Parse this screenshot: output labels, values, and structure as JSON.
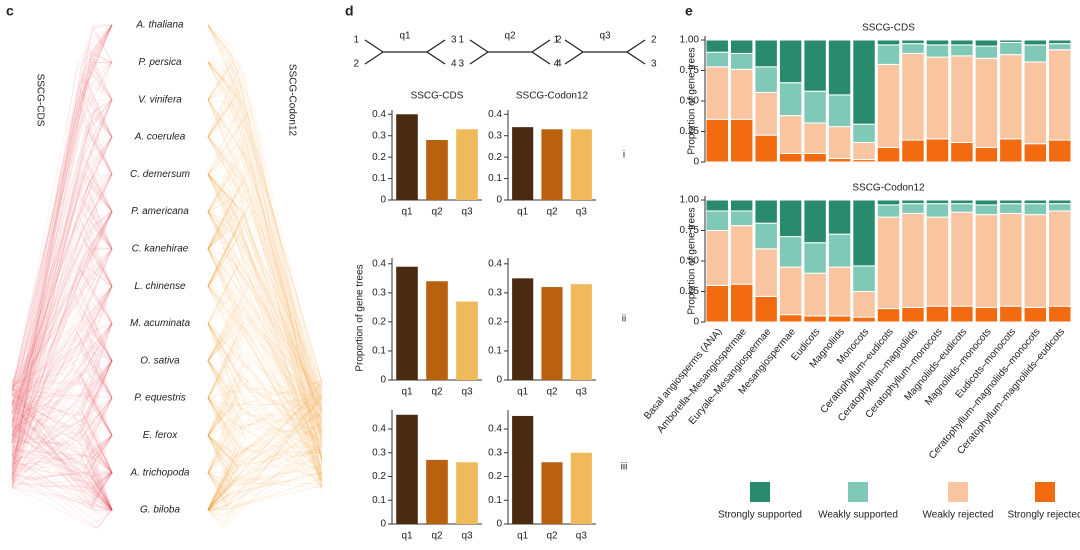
{
  "panel_labels": [
    "c",
    "d",
    "e"
  ],
  "cloudtree": {
    "left_label": "SSCG-CDS",
    "right_label": "SSCG-Codon12",
    "taxa": [
      "A. thaliana",
      "P. persica",
      "V. vinifera",
      "A. coerulea",
      "C. demersum",
      "P. americana",
      "C. kanehirae",
      "L. chinense",
      "M. acuminata",
      "O. sativa",
      "P. equestris",
      "E. ferox",
      "A. trichopoda",
      "G. biloba"
    ]
  },
  "topologies": [
    {
      "name": "q1",
      "leaves": [
        "1",
        "2",
        "3",
        "4"
      ]
    },
    {
      "name": "q2",
      "leaves": [
        "1",
        "3",
        "2",
        "4"
      ]
    },
    {
      "name": "q3",
      "leaves": [
        "1",
        "4",
        "2",
        "3"
      ]
    }
  ],
  "d_ylabel": "Proportion of gene trees",
  "chart_data": [
    {
      "type": "bar",
      "title": "SSCG-CDS",
      "categories": [
        "q1",
        "q2",
        "q3"
      ],
      "values": [
        0.4,
        0.28,
        0.33
      ],
      "colors": [
        "#4a2a10",
        "#b9610f",
        "#f0b95a"
      ],
      "ylim": [
        0,
        0.42
      ],
      "yticks": [
        0,
        0.1,
        0.2,
        0.3,
        0.4
      ]
    },
    {
      "type": "bar",
      "title": "SSCG-Codon12",
      "row_label": "i",
      "categories": [
        "q1",
        "q2",
        "q3"
      ],
      "values": [
        0.34,
        0.33,
        0.33
      ],
      "colors": [
        "#4a2a10",
        "#b9610f",
        "#f0b95a"
      ],
      "ylim": [
        0,
        0.42
      ],
      "yticks": [
        0,
        0.1,
        0.2,
        0.3,
        0.4
      ]
    },
    {
      "type": "bar",
      "categories": [
        "q1",
        "q2",
        "q3"
      ],
      "values": [
        0.39,
        0.34,
        0.27
      ],
      "colors": [
        "#4a2a10",
        "#b9610f",
        "#f0b95a"
      ],
      "ylim": [
        0,
        0.42
      ],
      "yticks": [
        0,
        0.1,
        0.2,
        0.3,
        0.4
      ]
    },
    {
      "type": "bar",
      "row_label": "ii",
      "categories": [
        "q1",
        "q2",
        "q3"
      ],
      "values": [
        0.35,
        0.32,
        0.33
      ],
      "colors": [
        "#4a2a10",
        "#b9610f",
        "#f0b95a"
      ],
      "ylim": [
        0,
        0.42
      ],
      "yticks": [
        0,
        0.1,
        0.2,
        0.3,
        0.4
      ]
    },
    {
      "type": "bar",
      "categories": [
        "q1",
        "q2",
        "q3"
      ],
      "values": [
        0.46,
        0.27,
        0.26
      ],
      "colors": [
        "#4a2a10",
        "#b9610f",
        "#f0b95a"
      ],
      "ylim": [
        0,
        0.48
      ],
      "yticks": [
        0,
        0.1,
        0.2,
        0.3,
        0.4
      ]
    },
    {
      "type": "bar",
      "row_label": "iii",
      "categories": [
        "q1",
        "q2",
        "q3"
      ],
      "values": [
        0.455,
        0.26,
        0.3
      ],
      "colors": [
        "#4a2a10",
        "#b9610f",
        "#f0b95a"
      ],
      "ylim": [
        0,
        0.48
      ],
      "yticks": [
        0,
        0.1,
        0.2,
        0.3,
        0.4
      ]
    },
    {
      "type": "stacked_bar",
      "title": "SSCG-CDS",
      "ylabel": "Proportion of gene trees",
      "ylim": [
        0,
        1
      ],
      "yticks": [
        0,
        0.25,
        {
          "value": 0.5,
          "label": "0.50"
        },
        0.75,
        {
          "value": 1,
          "label": "1.00"
        }
      ],
      "series": [
        {
          "color": "#f26b10",
          "values": [
            0.35,
            0.35,
            0.22,
            0.07,
            0.07,
            0.03,
            0.02,
            0.12,
            0.18,
            0.19,
            0.16,
            0.12,
            0.19,
            0.15,
            0.18
          ]
        },
        {
          "color": "#f9c4a0",
          "values": [
            0.43,
            0.41,
            0.35,
            0.31,
            0.25,
            0.26,
            0.14,
            0.68,
            0.71,
            0.67,
            0.71,
            0.73,
            0.69,
            0.67,
            0.74
          ]
        },
        {
          "color": "#80c9b8",
          "values": [
            0.12,
            0.13,
            0.21,
            0.27,
            0.26,
            0.26,
            0.15,
            0.16,
            0.08,
            0.1,
            0.09,
            0.1,
            0.1,
            0.14,
            0.05
          ]
        },
        {
          "color": "#2a8a6e",
          "values": [
            0.1,
            0.11,
            0.22,
            0.35,
            0.42,
            0.45,
            0.69,
            0.04,
            0.03,
            0.04,
            0.04,
            0.05,
            0.02,
            0.04,
            0.03
          ]
        }
      ]
    },
    {
      "type": "stacked_bar",
      "title": "SSCG-Codon12",
      "ylabel": "Proportion of gene trees",
      "ylim": [
        0,
        1
      ],
      "yticks": [
        0,
        0.25,
        {
          "value": 0.5,
          "label": "0.50"
        },
        0.75,
        {
          "value": 1,
          "label": "1.00"
        }
      ],
      "categories": [
        "Basal angiosperms (ANA)",
        "Amborella–Mesangiospermae",
        "Euryale–Mesangiospermae",
        "Mesangiospermae",
        "Eudicots",
        "Magnoliids",
        "Monocots",
        "Ceratophyllum–eudicots",
        "Ceratophyllum–magnoliids",
        "Ceratophyllum–monocots",
        "Magnoliids–eudicots",
        "Magnoliids–monocots",
        "Eudicots–monocots",
        "Ceratophyllum–magnoliids–monocots",
        "Ceratophyllum–magnoliids–eudicots"
      ],
      "legend": "bottom",
      "series": [
        {
          "name": "Strongly rejected",
          "color": "#f26b10",
          "values": [
            0.3,
            0.31,
            0.21,
            0.06,
            0.05,
            0.05,
            0.04,
            0.11,
            0.12,
            0.13,
            0.13,
            0.12,
            0.13,
            0.12,
            0.13
          ]
        },
        {
          "name": "Weakly rejected",
          "color": "#f9c4a0",
          "values": [
            0.45,
            0.48,
            0.39,
            0.39,
            0.35,
            0.4,
            0.21,
            0.75,
            0.77,
            0.73,
            0.77,
            0.76,
            0.76,
            0.76,
            0.78
          ]
        },
        {
          "name": "Weakly supported",
          "color": "#80c9b8",
          "values": [
            0.16,
            0.12,
            0.21,
            0.25,
            0.25,
            0.27,
            0.21,
            0.1,
            0.08,
            0.11,
            0.07,
            0.08,
            0.08,
            0.09,
            0.06
          ]
        },
        {
          "name": "Strongly supported",
          "color": "#2a8a6e",
          "values": [
            0.09,
            0.09,
            0.19,
            0.3,
            0.35,
            0.28,
            0.54,
            0.04,
            0.03,
            0.03,
            0.03,
            0.04,
            0.03,
            0.03,
            0.03
          ]
        }
      ]
    }
  ]
}
